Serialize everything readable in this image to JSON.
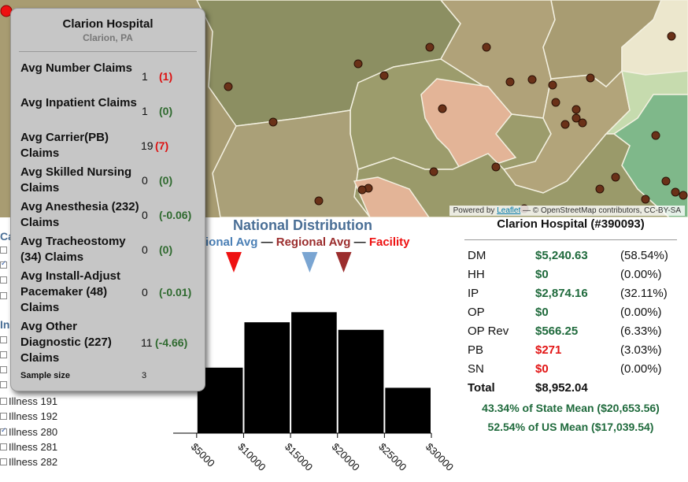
{
  "map": {
    "attribution_prefix": "Powered by",
    "attribution_link": "Leaflet",
    "attribution_suffix": "— © OpenStreetMap contributors, CC-BY-SA"
  },
  "tooltip": {
    "title": "Clarion Hospital",
    "subtitle": "Clarion, PA",
    "rows": [
      {
        "label": "Avg Number Claims",
        "value": "1",
        "delta": "(1)",
        "delta_color": "#dd1111"
      },
      {
        "label": "Avg Inpatient Claims",
        "value": "1",
        "delta": "(0)",
        "delta_color": "#2f6a2f"
      },
      {
        "label": "Avg Carrier(PB) Claims",
        "value": "19",
        "delta": "(7)",
        "delta_color": "#dd1111"
      },
      {
        "label": "Avg Skilled Nursing Claims",
        "value": "0",
        "delta": "(0)",
        "delta_color": "#2f6a2f"
      },
      {
        "label": "Avg Anesthesia (232) Claims",
        "value": "0",
        "delta": "(-0.06)",
        "delta_color": "#2f6a2f"
      },
      {
        "label": "Avg Tracheostomy (34) Claims",
        "value": "0",
        "delta": "(0)",
        "delta_color": "#2f6a2f"
      },
      {
        "label": "Avg Install-Adjust Pacemaker (48) Claims",
        "value": "0",
        "delta": "(-0.01)",
        "delta_color": "#2f6a2f"
      },
      {
        "label": "Avg Other Diagnostic (227) Claims",
        "value": "11",
        "delta": "(-4.66)",
        "delta_color": "#2f6a2f"
      }
    ],
    "sample_label": "Sample size",
    "sample_value": "3"
  },
  "sidebar": {
    "heading_partial_1": "Ca",
    "heading_partial_2": "In",
    "items": [
      {
        "label": "Illness 191",
        "checked": false
      },
      {
        "label": "Illness 192",
        "checked": false
      },
      {
        "label": "Illness 280",
        "checked": true
      },
      {
        "label": "Illness 281",
        "checked": false
      },
      {
        "label": "Illness 282",
        "checked": false
      }
    ]
  },
  "distribution": {
    "title": "National Distribution",
    "legend_national": "tional Avg",
    "legend_sep": "—",
    "legend_regional": "Regional Avg",
    "legend_facility": "Facility",
    "color_national": "#7aa5d2",
    "color_regional": "#9b2d2d",
    "color_facility": "#ee1111"
  },
  "chart_data": {
    "type": "bar",
    "title": "National Distribution",
    "bins": [
      {
        "start": 5000,
        "end": 10000,
        "value": 0.26
      },
      {
        "start": 10000,
        "end": 15000,
        "value": 0.44
      },
      {
        "start": 15000,
        "end": 20000,
        "value": 0.48
      },
      {
        "start": 20000,
        "end": 25000,
        "value": 0.41
      },
      {
        "start": 25000,
        "end": 30000,
        "value": 0.18
      }
    ],
    "x_ticks": [
      "$5000",
      "$10000",
      "$15000",
      "$20000",
      "$25000",
      "$30000"
    ],
    "x_tick_values": [
      5000,
      10000,
      15000,
      20000,
      25000,
      30000
    ],
    "x_domain": [
      2500,
      30000
    ],
    "y_max": 0.5,
    "markers": {
      "facility": 8952.04,
      "national": 17039.54,
      "regional": 20653.56
    }
  },
  "costs": {
    "title": "Clarion Hospital (#390093)",
    "rows": [
      {
        "label": "DM",
        "amount": "$5,240.63",
        "pct": "(58.54%)",
        "color": "#1f6a3c"
      },
      {
        "label": "HH",
        "amount": "$0",
        "pct": "(0.00%)",
        "color": "#1f6a3c"
      },
      {
        "label": "IP",
        "amount": "$2,874.16",
        "pct": "(32.11%)",
        "color": "#1f6a3c"
      },
      {
        "label": "OP",
        "amount": "$0",
        "pct": "(0.00%)",
        "color": "#1f6a3c"
      },
      {
        "label": "OP Rev",
        "amount": "$566.25",
        "pct": "(6.33%)",
        "color": "#1f6a3c"
      },
      {
        "label": "PB",
        "amount": "$271",
        "pct": "(3.03%)",
        "color": "#e21414"
      },
      {
        "label": "SN",
        "amount": "$0",
        "pct": "(0.00%)",
        "color": "#e21414"
      }
    ],
    "total_label": "Total",
    "total_amount": "$8,952.04",
    "state_note": "43.34% of State Mean ($20,653.56)",
    "us_note": "52.54% of US Mean ($17,039.54)"
  }
}
